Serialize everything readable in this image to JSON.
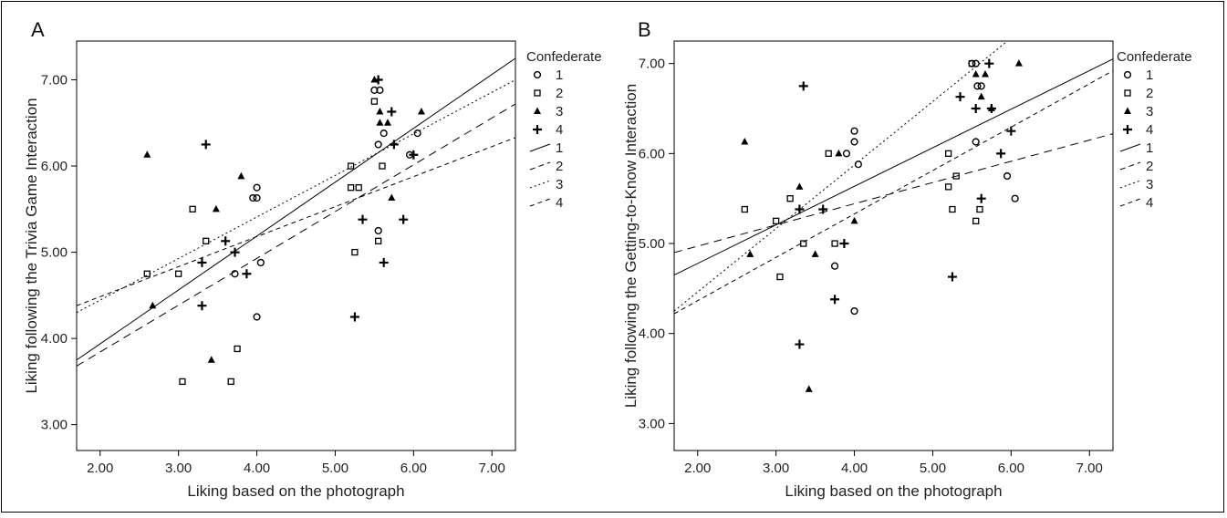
{
  "chart_data": [
    {
      "type": "scatter",
      "panel_label": "A",
      "xlabel": "Liking based on the photograph",
      "ylabel": "Liking following the Trivia Game Interaction",
      "xlim": [
        1.7,
        7.3
      ],
      "ylim": [
        2.7,
        7.45
      ],
      "x_ticks": [
        "2.00",
        "3.00",
        "4.00",
        "5.00",
        "6.00",
        "7.00"
      ],
      "y_ticks": [
        "3.00",
        "4.00",
        "5.00",
        "6.00",
        "7.00"
      ],
      "grid": false,
      "legend": {
        "title": "Confederate",
        "placement": "right",
        "marker_labels": [
          "1",
          "2",
          "3",
          "4"
        ],
        "line_labels": [
          "1",
          "2",
          "3",
          "4"
        ]
      },
      "series": [
        {
          "name": "1",
          "marker": "circle",
          "points": [
            [
              3.72,
              4.75
            ],
            [
              4.0,
              4.25
            ],
            [
              4.05,
              4.88
            ],
            [
              3.95,
              5.63
            ],
            [
              4.0,
              5.63
            ],
            [
              4.0,
              5.75
            ],
            [
              5.55,
              5.25
            ],
            [
              5.55,
              6.25
            ],
            [
              5.62,
              6.38
            ],
            [
              5.5,
              6.88
            ],
            [
              5.57,
              6.88
            ],
            [
              5.95,
              6.13
            ],
            [
              6.05,
              6.38
            ]
          ]
        },
        {
          "name": "2",
          "marker": "square",
          "points": [
            [
              2.6,
              4.75
            ],
            [
              3.0,
              4.75
            ],
            [
              3.05,
              3.5
            ],
            [
              3.18,
              5.5
            ],
            [
              3.35,
              5.13
            ],
            [
              3.67,
              3.5
            ],
            [
              3.75,
              3.88
            ],
            [
              5.2,
              6.0
            ],
            [
              5.2,
              5.75
            ],
            [
              5.25,
              5.0
            ],
            [
              5.3,
              5.75
            ],
            [
              5.55,
              5.13
            ],
            [
              5.6,
              6.0
            ],
            [
              5.5,
              6.75
            ]
          ]
        },
        {
          "name": "3",
          "marker": "triangle",
          "points": [
            [
              2.6,
              6.13
            ],
            [
              2.67,
              4.38
            ],
            [
              3.42,
              3.75
            ],
            [
              3.48,
              5.5
            ],
            [
              3.8,
              5.88
            ],
            [
              5.5,
              7.0
            ],
            [
              5.57,
              6.63
            ],
            [
              5.57,
              6.5
            ],
            [
              5.67,
              6.5
            ],
            [
              5.72,
              5.63
            ],
            [
              6.1,
              6.63
            ]
          ]
        },
        {
          "name": "4",
          "marker": "plus",
          "points": [
            [
              3.3,
              4.88
            ],
            [
              3.3,
              4.38
            ],
            [
              3.35,
              6.25
            ],
            [
              3.6,
              5.13
            ],
            [
              3.72,
              5.0
            ],
            [
              3.87,
              4.75
            ],
            [
              5.25,
              4.25
            ],
            [
              5.35,
              5.38
            ],
            [
              5.55,
              7.0
            ],
            [
              5.62,
              4.88
            ],
            [
              5.72,
              6.63
            ],
            [
              5.75,
              6.25
            ],
            [
              5.87,
              5.38
            ],
            [
              6.0,
              6.13
            ]
          ]
        }
      ],
      "fit_lines": [
        {
          "name": "1",
          "dash": "solid",
          "x": [
            1.7,
            7.3
          ],
          "y": [
            3.75,
            7.25
          ]
        },
        {
          "name": "2",
          "dash": "long-dash",
          "x": [
            1.7,
            7.3
          ],
          "y": [
            3.68,
            6.72
          ]
        },
        {
          "name": "3",
          "dash": "dotted",
          "x": [
            1.7,
            7.3
          ],
          "y": [
            4.3,
            7.0
          ]
        },
        {
          "name": "4",
          "dash": "dash-dot",
          "x": [
            1.7,
            7.3
          ],
          "y": [
            4.38,
            6.33
          ]
        }
      ]
    },
    {
      "type": "scatter",
      "panel_label": "B",
      "xlabel": "Liking based on the photograph",
      "ylabel": "Liking following the Getting-to-Know Interaction",
      "xlim": [
        1.7,
        7.3
      ],
      "ylim": [
        2.7,
        7.25
      ],
      "x_ticks": [
        "2.00",
        "3.00",
        "4.00",
        "5.00",
        "6.00",
        "7.00"
      ],
      "y_ticks": [
        "3.00",
        "4.00",
        "5.00",
        "6.00",
        "7.00"
      ],
      "grid": false,
      "legend": {
        "title": "Confederate",
        "placement": "right",
        "marker_labels": [
          "1",
          "2",
          "3",
          "4"
        ],
        "line_labels": [
          "1",
          "2",
          "3",
          "4"
        ]
      },
      "series": [
        {
          "name": "1",
          "marker": "circle",
          "points": [
            [
              3.75,
              4.75
            ],
            [
              3.9,
              6.0
            ],
            [
              4.0,
              6.25
            ],
            [
              4.0,
              6.13
            ],
            [
              4.05,
              5.88
            ],
            [
              4.0,
              4.25
            ],
            [
              5.5,
              7.0
            ],
            [
              5.55,
              7.0
            ],
            [
              5.57,
              6.75
            ],
            [
              5.62,
              6.75
            ],
            [
              5.55,
              6.13
            ],
            [
              5.95,
              5.75
            ],
            [
              6.05,
              5.5
            ]
          ]
        },
        {
          "name": "2",
          "marker": "square",
          "points": [
            [
              2.6,
              5.38
            ],
            [
              3.0,
              5.25
            ],
            [
              3.05,
              4.63
            ],
            [
              3.18,
              5.5
            ],
            [
              3.35,
              5.0
            ],
            [
              3.67,
              6.0
            ],
            [
              3.75,
              5.0
            ],
            [
              5.2,
              6.0
            ],
            [
              5.2,
              5.63
            ],
            [
              5.25,
              5.38
            ],
            [
              5.3,
              5.75
            ],
            [
              5.55,
              5.25
            ],
            [
              5.6,
              5.38
            ],
            [
              5.5,
              7.0
            ]
          ]
        },
        {
          "name": "3",
          "marker": "triangle",
          "points": [
            [
              2.6,
              6.13
            ],
            [
              2.67,
              4.88
            ],
            [
              3.3,
              5.63
            ],
            [
              3.42,
              3.38
            ],
            [
              3.5,
              4.88
            ],
            [
              3.8,
              6.0
            ],
            [
              4.0,
              5.25
            ],
            [
              5.55,
              6.88
            ],
            [
              5.62,
              6.63
            ],
            [
              5.67,
              6.88
            ],
            [
              5.75,
              6.5
            ],
            [
              6.1,
              7.0
            ]
          ]
        },
        {
          "name": "4",
          "marker": "plus",
          "points": [
            [
              3.3,
              5.38
            ],
            [
              3.3,
              3.88
            ],
            [
              3.35,
              6.75
            ],
            [
              3.6,
              5.38
            ],
            [
              3.75,
              4.38
            ],
            [
              3.87,
              5.0
            ],
            [
              5.25,
              4.63
            ],
            [
              5.35,
              6.63
            ],
            [
              5.55,
              6.5
            ],
            [
              5.62,
              5.5
            ],
            [
              5.72,
              7.0
            ],
            [
              5.75,
              6.5
            ],
            [
              5.87,
              6.0
            ],
            [
              6.0,
              6.25
            ]
          ]
        }
      ],
      "fit_lines": [
        {
          "name": "1",
          "dash": "solid",
          "x": [
            1.7,
            7.3
          ],
          "y": [
            4.65,
            7.05
          ]
        },
        {
          "name": "2",
          "dash": "long-dash",
          "x": [
            1.7,
            7.3
          ],
          "y": [
            4.9,
            6.22
          ]
        },
        {
          "name": "3",
          "dash": "dotted",
          "x": [
            1.7,
            7.3
          ],
          "y": [
            4.25,
            8.2
          ]
        },
        {
          "name": "4",
          "dash": "dash-dot",
          "x": [
            1.7,
            7.3
          ],
          "y": [
            4.22,
            6.92
          ]
        }
      ]
    }
  ]
}
